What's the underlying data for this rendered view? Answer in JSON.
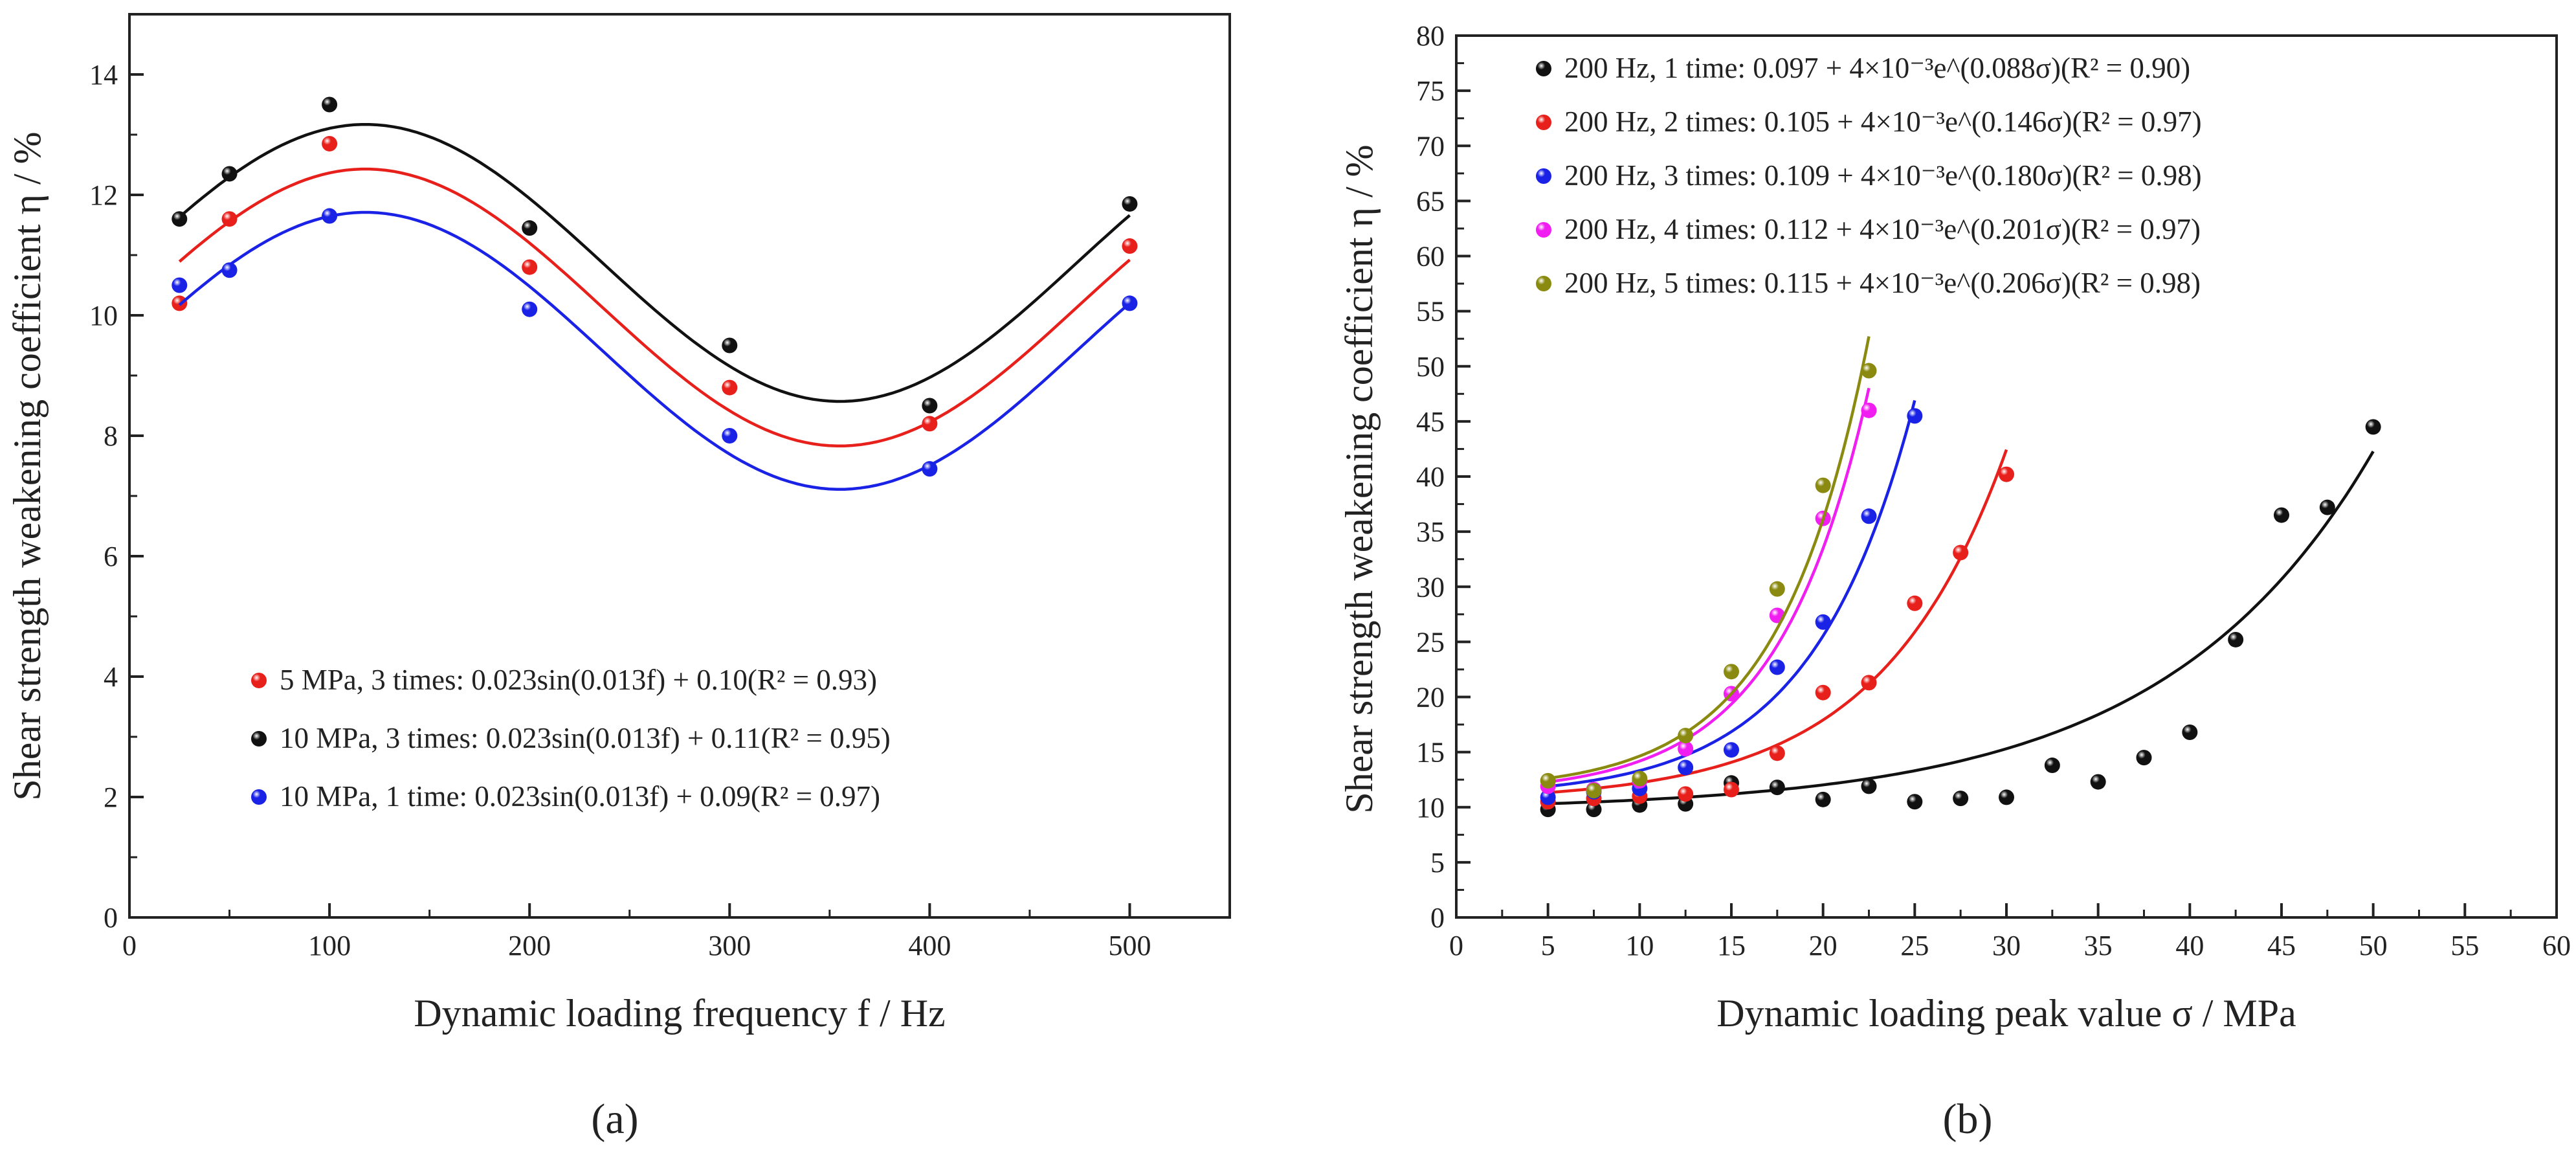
{
  "chart_data": [
    {
      "type": "scatter",
      "panel_label": "(a)",
      "xlabel": "Dynamic loading frequency f / Hz",
      "ylabel": "Shear strength weakening coefficient η / %",
      "xlim": [
        0,
        550
      ],
      "ylim": [
        0,
        15
      ],
      "xticks": [
        "0",
        "100",
        "200",
        "300",
        "400",
        "500"
      ],
      "yticks": [
        "0",
        "2",
        "4",
        "6",
        "8",
        "10",
        "12",
        "14"
      ],
      "legend_position": "lower-left",
      "series": [
        {
          "name": "5 MPa, 3 times: 0.023sin(0.013f) + 0.10(R² = 0.93)",
          "color": "#e8201c",
          "x": [
            25,
            50,
            100,
            200,
            300,
            400,
            500
          ],
          "y": [
            10.2,
            11.6,
            12.85,
            10.8,
            8.8,
            8.2,
            11.15
          ],
          "fit": {
            "x": [
              25,
              500
            ],
            "amplitude": 2.3,
            "offset": 10.13,
            "peak_x": 118
          }
        },
        {
          "name": "10 MPa, 3 times: 0.023sin(0.013f) + 0.11(R² = 0.95)",
          "color": "#111111",
          "x": [
            25,
            50,
            100,
            200,
            300,
            400,
            500
          ],
          "y": [
            11.6,
            12.35,
            13.5,
            11.45,
            9.5,
            8.5,
            11.85
          ],
          "fit": {
            "x": [
              25,
              500
            ],
            "amplitude": 2.3,
            "offset": 10.87,
            "peak_x": 118
          }
        },
        {
          "name": "10 MPa, 1 time: 0.023sin(0.013f) + 0.09(R² = 0.97)",
          "color": "#1a22e6",
          "x": [
            25,
            50,
            100,
            200,
            300,
            400,
            500
          ],
          "y": [
            10.5,
            10.75,
            11.65,
            10.1,
            8.0,
            7.45,
            10.2
          ],
          "fit": {
            "x": [
              25,
              500
            ],
            "amplitude": 2.3,
            "offset": 9.41,
            "peak_x": 118
          }
        }
      ]
    },
    {
      "type": "scatter",
      "panel_label": "(b)",
      "xlabel": "Dynamic loading peak value σ / MPa",
      "ylabel": "Shear strength weakening coefficient η / %",
      "xlim": [
        0,
        60
      ],
      "ylim": [
        0,
        80
      ],
      "xticks": [
        "0",
        "5",
        "10",
        "15",
        "20",
        "25",
        "30",
        "35",
        "40",
        "45",
        "50",
        "55",
        "60"
      ],
      "yticks": [
        "0",
        "5",
        "10",
        "15",
        "20",
        "25",
        "30",
        "35",
        "40",
        "45",
        "50",
        "55",
        "60",
        "65",
        "70",
        "75",
        "80"
      ],
      "legend_position": "top-left",
      "series": [
        {
          "name": "200 Hz, 1 time: 0.097 + 4×10⁻³e^(0.088σ)(R² = 0.90)",
          "color": "#111111",
          "x": [
            5,
            7.5,
            10,
            12.5,
            15,
            17.5,
            20,
            22.5,
            25,
            27.5,
            30,
            32.5,
            35,
            37.5,
            40,
            42.5,
            45,
            47.5,
            50
          ],
          "y": [
            9.8,
            9.8,
            10.2,
            10.3,
            12.2,
            11.8,
            10.7,
            11.9,
            10.5,
            10.8,
            10.9,
            13.8,
            12.3,
            14.5,
            16.8,
            25.2,
            36.5,
            37.2,
            44.5
          ],
          "fit": {
            "x": [
              5,
              50
            ],
            "a": 9.7,
            "b": 0.4,
            "k": 0.088
          }
        },
        {
          "name": "200 Hz, 2 times: 0.105 + 4×10⁻³e^(0.146σ)(R² = 0.97)",
          "color": "#e8201c",
          "x": [
            5,
            7.5,
            10,
            12.5,
            15,
            17.5,
            20,
            22.5,
            25,
            27.5,
            30
          ],
          "y": [
            10.5,
            10.8,
            11.0,
            11.2,
            11.6,
            14.9,
            20.4,
            21.3,
            28.5,
            33.1,
            40.2
          ],
          "fit": {
            "x": [
              5,
              30
            ],
            "a": 10.5,
            "b": 0.4,
            "k": 0.146
          }
        },
        {
          "name": "200 Hz, 3 times: 0.109 + 4×10⁻³e^(0.180σ)(R² = 0.98)",
          "color": "#1a22e6",
          "x": [
            5,
            7.5,
            10,
            12.5,
            15,
            17.5,
            20,
            22.5,
            25
          ],
          "y": [
            10.9,
            11.4,
            11.7,
            13.6,
            15.2,
            22.7,
            26.8,
            36.4,
            45.5
          ],
          "fit": {
            "x": [
              5,
              25
            ],
            "a": 10.9,
            "b": 0.4,
            "k": 0.18
          }
        },
        {
          "name": "200 Hz, 4 times: 0.112 + 4×10⁻³e^(0.201σ)(R² = 0.97)",
          "color": "#f01ef0",
          "x": [
            5,
            7.5,
            10,
            12.5,
            15,
            17.5,
            20,
            22.5
          ],
          "y": [
            11.9,
            11.6,
            12.4,
            15.3,
            20.3,
            27.4,
            36.2,
            46.0
          ],
          "fit": {
            "x": [
              5,
              22.5
            ],
            "a": 11.2,
            "b": 0.4,
            "k": 0.201
          }
        },
        {
          "name": "200 Hz, 5 times: 0.115 + 4×10⁻³e^(0.206σ)(R² = 0.98)",
          "color": "#8a8a10",
          "x": [
            5,
            7.5,
            10,
            12.5,
            15,
            17.5,
            20,
            22.5
          ],
          "y": [
            12.4,
            11.5,
            12.6,
            16.5,
            22.3,
            29.8,
            39.2,
            49.6
          ],
          "fit": {
            "x": [
              5,
              22.5
            ],
            "a": 11.5,
            "b": 0.4,
            "k": 0.206
          }
        }
      ]
    }
  ]
}
